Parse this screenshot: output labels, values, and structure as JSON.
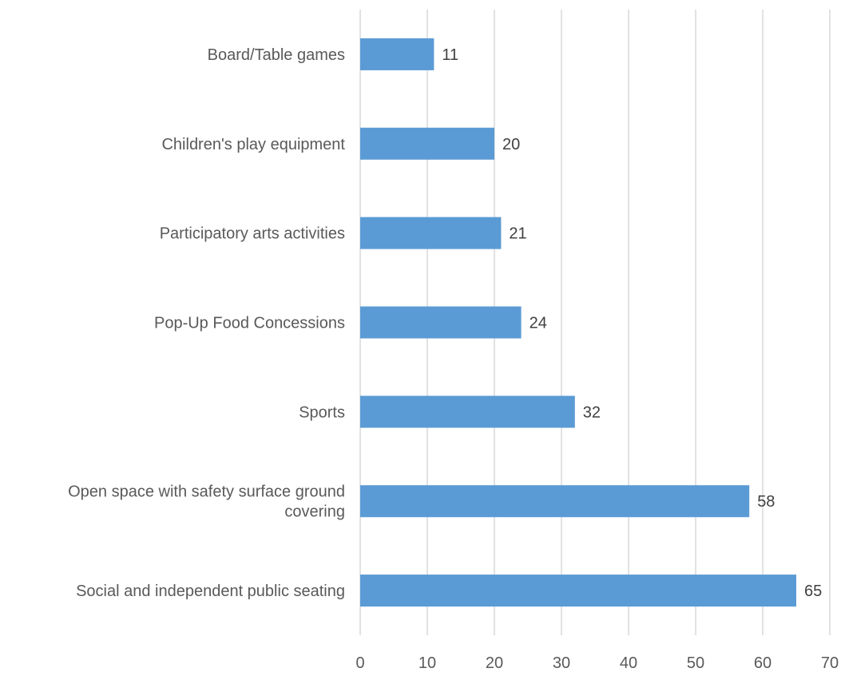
{
  "chart_data": {
    "type": "bar",
    "orientation": "horizontal",
    "categories": [
      "Board/Table games",
      "Children's play equipment",
      "Participatory arts activities",
      "Pop-Up Food Concessions",
      "Sports",
      "Open space with safety surface ground covering",
      "Social and independent public seating"
    ],
    "category_lines": [
      [
        "Board/Table games"
      ],
      [
        "Children's play equipment"
      ],
      [
        "Participatory arts activities"
      ],
      [
        "Pop-Up Food Concessions"
      ],
      [
        "Sports"
      ],
      [
        "Open space with safety surface ground",
        "covering"
      ],
      [
        "Social and independent public seating"
      ]
    ],
    "values": [
      11,
      20,
      21,
      24,
      32,
      58,
      65
    ],
    "xlim": [
      0,
      70
    ],
    "x_ticks": [
      0,
      10,
      20,
      30,
      40,
      50,
      60,
      70
    ],
    "grid": "vertical",
    "legend": "none",
    "title": "",
    "xlabel": "",
    "ylabel": "",
    "bar_color": "#5b9bd5"
  }
}
